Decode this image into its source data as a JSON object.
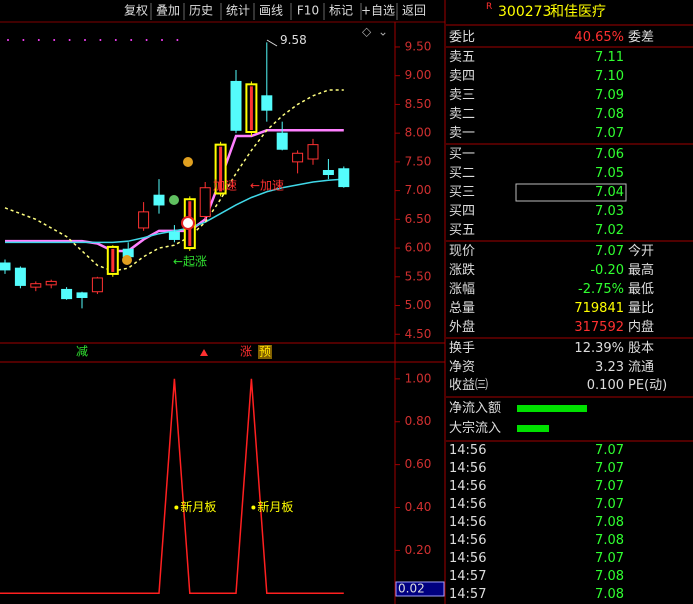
{
  "toolbar": [
    "复权",
    "叠加",
    "历史",
    "统计",
    "画线",
    "F10",
    "标记",
    "+自选",
    "返回"
  ],
  "chart_data": {
    "type": "candlestick",
    "ylim": [
      4.4,
      9.83
    ],
    "yticks": [
      {
        "value": 9.5,
        "label": "9.50"
      },
      {
        "value": 9.0,
        "label": "9.00"
      },
      {
        "value": 8.5,
        "label": "8.50"
      },
      {
        "value": 8.0,
        "label": "8.00"
      },
      {
        "value": 7.5,
        "label": "7.50"
      },
      {
        "value": 7.0,
        "label": "7.00"
      },
      {
        "value": 6.5,
        "label": "6.50"
      },
      {
        "value": 6.0,
        "label": "6.00"
      },
      {
        "value": 5.5,
        "label": "5.50"
      },
      {
        "value": 5.0,
        "label": "5.00"
      },
      {
        "value": 4.5,
        "label": "4.50"
      }
    ],
    "candles": [
      {
        "open": 5.74,
        "high": 5.8,
        "low": 5.55,
        "close": 5.62
      },
      {
        "open": 5.65,
        "high": 5.68,
        "low": 5.3,
        "close": 5.35
      },
      {
        "open": 5.32,
        "high": 5.42,
        "low": 5.25,
        "close": 5.38
      },
      {
        "open": 5.36,
        "high": 5.45,
        "low": 5.3,
        "close": 5.42
      },
      {
        "open": 5.28,
        "high": 5.32,
        "low": 5.1,
        "close": 5.12
      },
      {
        "open": 5.22,
        "high": 5.24,
        "low": 4.95,
        "close": 5.14
      },
      {
        "open": 5.24,
        "high": 5.5,
        "low": 5.2,
        "close": 5.48
      },
      {
        "open": 5.55,
        "high": 6.05,
        "low": 5.5,
        "close": 6.02,
        "color": "#ffff00"
      },
      {
        "open": 5.98,
        "high": 6.1,
        "low": 5.8,
        "close": 5.85
      },
      {
        "open": 6.35,
        "high": 6.8,
        "low": 6.3,
        "close": 6.63
      },
      {
        "open": 6.92,
        "high": 7.2,
        "low": 6.6,
        "close": 6.75
      },
      {
        "open": 6.28,
        "high": 6.4,
        "low": 6.1,
        "close": 6.15
      },
      {
        "open": 6.0,
        "high": 6.9,
        "low": 5.95,
        "close": 6.85,
        "color": "#ffff00"
      },
      {
        "open": 6.55,
        "high": 7.15,
        "low": 6.5,
        "close": 7.05
      },
      {
        "open": 6.95,
        "high": 7.85,
        "low": 6.9,
        "close": 7.8,
        "color": "#ffff00"
      },
      {
        "open": 8.9,
        "high": 9.1,
        "low": 8.0,
        "close": 8.05
      },
      {
        "open": 8.02,
        "high": 8.9,
        "low": 7.95,
        "close": 8.85,
        "color": "#ffff00"
      },
      {
        "open": 8.65,
        "high": 9.58,
        "low": 8.2,
        "close": 8.4
      },
      {
        "open": 8.0,
        "high": 8.2,
        "low": 7.7,
        "close": 7.72
      },
      {
        "open": 7.5,
        "high": 7.7,
        "low": 7.3,
        "close": 7.65
      },
      {
        "open": 7.55,
        "high": 7.9,
        "low": 7.45,
        "close": 7.8
      },
      {
        "open": 7.35,
        "high": 7.55,
        "low": 7.2,
        "close": 7.28
      },
      {
        "open": 7.38,
        "high": 7.42,
        "low": 7.05,
        "close": 7.07
      }
    ],
    "lines": [
      {
        "color": "#ff80ff",
        "values": [
          6.12,
          6.12,
          6.12,
          6.12,
          6.12,
          6.12,
          6.08,
          5.95,
          5.95,
          6.15,
          6.3,
          6.3,
          6.3,
          6.5,
          7.2,
          7.95,
          7.95,
          8.05,
          8.05,
          8.05,
          8.05,
          8.05,
          8.05
        ]
      },
      {
        "color": "#40d8e8",
        "values": [
          6.1,
          6.1,
          6.1,
          6.1,
          6.1,
          6.1,
          6.1,
          6.1,
          6.12,
          6.18,
          6.25,
          6.3,
          6.35,
          6.45,
          6.6,
          6.75,
          6.88,
          6.98,
          7.05,
          7.1,
          7.15,
          7.18,
          7.2
        ]
      },
      {
        "color": "#ffff80",
        "values": [
          6.7,
          6.6,
          6.5,
          6.35,
          6.2,
          5.95,
          5.7,
          5.6,
          5.65,
          5.85,
          6.0,
          6.05,
          6.2,
          6.45,
          6.85,
          7.3,
          7.7,
          8.05,
          8.3,
          8.5,
          8.65,
          8.75,
          8.75
        ]
      }
    ],
    "annotations": [
      "9.58",
      "加速",
      "←加速",
      "←起涨"
    ],
    "signals": [
      "减",
      "涨",
      "预"
    ]
  },
  "indicator": {
    "type": "line",
    "color": "#ff2020",
    "ylim": [
      -0.05,
      1.06
    ],
    "yticks": [
      {
        "value": 1.0,
        "label": "1.00"
      },
      {
        "value": 0.8,
        "label": "0.80"
      },
      {
        "value": 0.6,
        "label": "0.60"
      },
      {
        "value": 0.4,
        "label": "0.40"
      },
      {
        "value": 0.2,
        "label": "0.20"
      }
    ],
    "values": [
      0,
      0,
      0,
      0,
      0,
      0,
      0,
      0,
      0,
      0,
      0,
      1,
      0,
      0,
      0,
      0,
      1,
      0,
      0,
      0,
      0,
      0,
      0
    ],
    "labels": [
      "新月板",
      "新月板"
    ],
    "current": {
      "value": 0.02,
      "label": "0.02"
    }
  },
  "quote": {
    "badge": "R",
    "code": "300273",
    "name": "和佳医疗",
    "ratio": {
      "label": "委比",
      "value": "40.65%",
      "label2": "委差"
    },
    "asks": [
      {
        "label": "卖五",
        "price": "7.11"
      },
      {
        "label": "卖四",
        "price": "7.10"
      },
      {
        "label": "卖三",
        "price": "7.09"
      },
      {
        "label": "卖二",
        "price": "7.08"
      },
      {
        "label": "卖一",
        "price": "7.07"
      }
    ],
    "bids": [
      {
        "label": "买一",
        "price": "7.06"
      },
      {
        "label": "买二",
        "price": "7.05"
      },
      {
        "label": "买三",
        "price": "7.04"
      },
      {
        "label": "买四",
        "price": "7.03"
      },
      {
        "label": "买五",
        "price": "7.02"
      }
    ],
    "stats": [
      {
        "label": "现价",
        "value": "7.07",
        "label2": "今开"
      },
      {
        "label": "涨跌",
        "value": "-0.20",
        "label2": "最高"
      },
      {
        "label": "涨幅",
        "value": "-2.75%",
        "label2": "最低"
      },
      {
        "label": "总量",
        "value": "719841",
        "label2": "量比"
      },
      {
        "label": "外盘",
        "value": "317592",
        "label2": "内盘"
      }
    ],
    "fund": [
      {
        "label": "换手",
        "value": "12.39%",
        "label2": "股本"
      },
      {
        "label": "净资",
        "value": "3.23",
        "label2": "流通"
      },
      {
        "label": "收益㈢",
        "value": "0.100",
        "label2": "PE(动)"
      }
    ],
    "flows": [
      "净流入额",
      "大宗流入"
    ],
    "trades": [
      {
        "time": "14:56",
        "price": "7.07"
      },
      {
        "time": "14:56",
        "price": "7.07"
      },
      {
        "time": "14:56",
        "price": "7.07"
      },
      {
        "time": "14:56",
        "price": "7.07"
      },
      {
        "time": "14:56",
        "price": "7.08"
      },
      {
        "time": "14:56",
        "price": "7.08"
      },
      {
        "time": "14:56",
        "price": "7.07"
      },
      {
        "time": "14:57",
        "price": "7.08"
      },
      {
        "time": "14:57",
        "price": "7.08"
      }
    ]
  }
}
